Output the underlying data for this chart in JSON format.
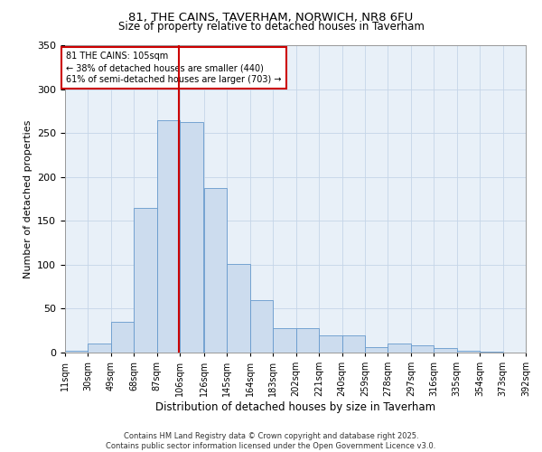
{
  "title_line1": "81, THE CAINS, TAVERHAM, NORWICH, NR8 6FU",
  "title_line2": "Size of property relative to detached houses in Taverham",
  "xlabel": "Distribution of detached houses by size in Taverham",
  "ylabel": "Number of detached properties",
  "bar_color": "#ccdcee",
  "bar_edge_color": "#6699cc",
  "grid_color": "#c5d5e8",
  "background_color": "#e8f0f8",
  "annotation_line1": "81 THE CAINS: 105sqm",
  "annotation_line2": "← 38% of detached houses are smaller (440)",
  "annotation_line3": "61% of semi-detached houses are larger (703) →",
  "vline_x": 105,
  "vline_color": "#cc0000",
  "bins": [
    11,
    30,
    49,
    68,
    87,
    106,
    126,
    145,
    164,
    183,
    202,
    221,
    240,
    259,
    278,
    297,
    316,
    335,
    354,
    373,
    392
  ],
  "bin_labels": [
    "11sqm",
    "30sqm",
    "49sqm",
    "68sqm",
    "87sqm",
    "106sqm",
    "126sqm",
    "145sqm",
    "164sqm",
    "183sqm",
    "202sqm",
    "221sqm",
    "240sqm",
    "259sqm",
    "278sqm",
    "297sqm",
    "316sqm",
    "335sqm",
    "354sqm",
    "373sqm",
    "392sqm"
  ],
  "heights": [
    2,
    10,
    35,
    165,
    265,
    263,
    187,
    101,
    60,
    28,
    28,
    20,
    20,
    6,
    10,
    8,
    5,
    2,
    1,
    0,
    2
  ],
  "ylim": [
    0,
    350
  ],
  "yticks": [
    0,
    50,
    100,
    150,
    200,
    250,
    300,
    350
  ],
  "footer_line1": "Contains HM Land Registry data © Crown copyright and database right 2025.",
  "footer_line2": "Contains public sector information licensed under the Open Government Licence v3.0."
}
